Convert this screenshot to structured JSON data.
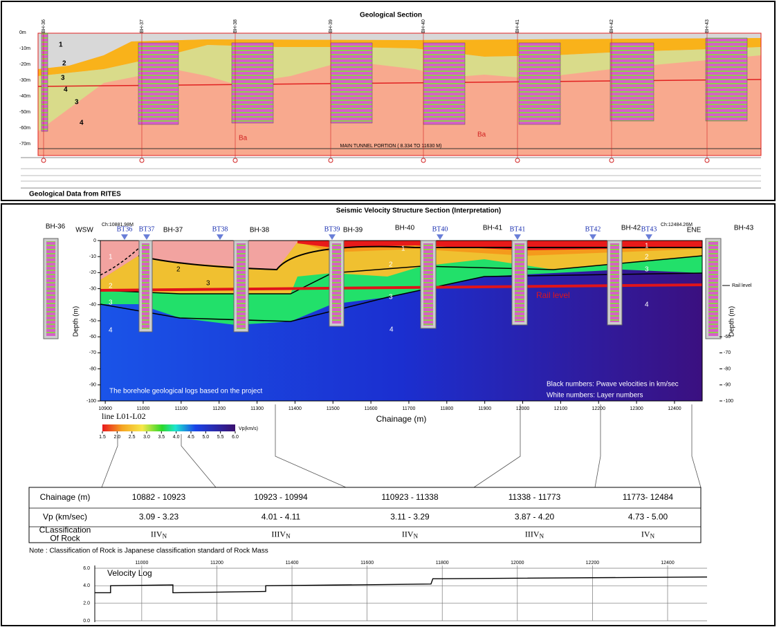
{
  "geological_section": {
    "title": "Geological Section",
    "boreholes": [
      "BH-36",
      "BH-37",
      "BH-38",
      "BH-39",
      "BH-40",
      "BH-41",
      "BH-42",
      "BH-43"
    ],
    "depth_labels": [
      "0m",
      "-10m",
      "-20m",
      "-30m",
      "-40m",
      "-50m",
      "-60m",
      "-70m"
    ],
    "layer_labels": [
      "1",
      "2",
      "3",
      "4",
      "3",
      "4"
    ],
    "rock_labels": [
      "Ba",
      "Ba"
    ],
    "tunnel_note": "MAIN TUNNEL PORTION ( 8.334 TO 11630 M)",
    "source": "Geological Data from RITES"
  },
  "seismic_section": {
    "title": "Seismic Velocity Structure Section (Interpretation)",
    "start_chainage": "Ch:10881.98M",
    "end_chainage": "Ch:12484.26M",
    "bt_labels": [
      "BT36",
      "BT37",
      "BT38",
      "BT39",
      "BT40",
      "BT41",
      "BT42",
      "BT43"
    ],
    "top_labels": [
      "BH-36",
      "WSW",
      "BH-37",
      "BH-38",
      "BH-39",
      "BH-40",
      "BH-41",
      "BH-42",
      "ENE",
      "BH-43"
    ],
    "layer_numbers": [
      "1",
      "2",
      "3",
      "4",
      "1",
      "2",
      "3",
      "4",
      "1",
      "2",
      "3",
      "4"
    ],
    "velocity_numbers": [
      "2",
      "3"
    ],
    "rail_level": "Rail level",
    "rail_level_side": "Rail level",
    "x_label": "Chainage (m)",
    "y_label": "Depth (m)",
    "y2_label": "Depth (m)",
    "line_name": "line L01-L02",
    "notes": [
      "The borehole geological logs based on the project",
      "Black numbers: Pwave velocities in km/sec",
      "White numbers: Layer numbers"
    ],
    "xlim": [
      10887,
      12473
    ],
    "ylim": [
      -100,
      0
    ],
    "xticks": [
      10900,
      11000,
      11100,
      11200,
      11300,
      11400,
      11500,
      11600,
      11700,
      11800,
      11900,
      12000,
      12100,
      12200,
      12300,
      12400
    ],
    "yticks": [
      0,
      -10,
      -20,
      -30,
      -40,
      -50,
      -60,
      -70,
      -80,
      -90,
      -100
    ],
    "y2ticks": [
      -60,
      -70,
      -80,
      -90,
      -100
    ],
    "colorbar": {
      "label": "Vp(km/s)",
      "lim": [
        1.5,
        6.0
      ],
      "ticks": [
        1.5,
        {
          "value": 2,
          "label": "2.0"
        },
        2.5,
        {
          "value": 3,
          "label": "3.0"
        },
        3.5,
        {
          "value": 4,
          "label": "4.0"
        },
        4.5,
        {
          "value": 5,
          "label": "5.0"
        },
        5.5,
        {
          "value": 6,
          "label": "6.0"
        }
      ]
    }
  },
  "table": {
    "rows": [
      {
        "label": [
          "Chainage (m)"
        ],
        "cells": [
          "10882 - 10923",
          "10923 - 10994",
          "110923 - 11338",
          "11338 - 11773",
          "11773- 12484"
        ]
      },
      {
        "label": [
          "Vp (km/sec)"
        ],
        "cells": [
          "3.09 - 3.23",
          "4.01 - 4.11",
          "3.11 - 3.29",
          "3.87 - 4.20",
          "4.73 - 5.00"
        ]
      },
      {
        "label": [
          "CLassification",
          "Of Rock"
        ],
        "cells": [
          {
            "main": "IIV",
            "sub": "N"
          },
          {
            "main": "IIIV",
            "sub": "N"
          },
          {
            "main": "IIV",
            "sub": "N"
          },
          {
            "main": "IIIV",
            "sub": "N"
          },
          {
            "main": "IV",
            "sub": "N"
          }
        ]
      }
    ]
  },
  "note": "Note : Classification of Rock is Japanese classification standard of Rock Mass",
  "chart_data": {
    "type": "line",
    "title": "Velocity Log",
    "x": [
      10875,
      10917,
      10917,
      11083,
      11083,
      11330,
      11330,
      11770,
      11775,
      12505
    ],
    "values": [
      3.2,
      3.2,
      4.0,
      4.1,
      3.2,
      3.35,
      4.0,
      4.2,
      4.8,
      5.0
    ],
    "color": "#000000",
    "xlim": [
      10875,
      12505
    ],
    "ylim": [
      0,
      6
    ],
    "xticks": [
      11000,
      11200,
      11400,
      11600,
      11800,
      12000,
      12200,
      12400
    ],
    "yticks": [
      {
        "value": 0,
        "label": "0.0"
      },
      {
        "value": 2,
        "label": "2.0"
      },
      {
        "value": 4,
        "label": "4.0"
      },
      {
        "value": 6,
        "label": "6.0"
      }
    ],
    "grid": true
  }
}
